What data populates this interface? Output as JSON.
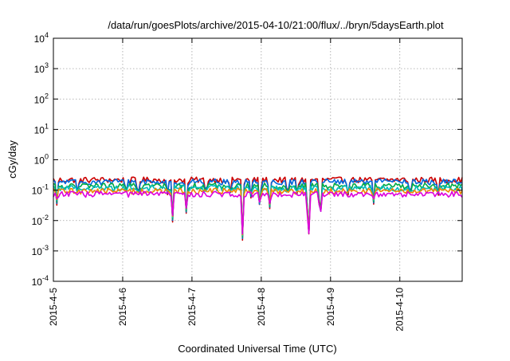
{
  "chart_data": {
    "type": "line",
    "title": "/data/run/goesPlots/archive/2015-04-10/21:00/flux/../bryn/5daysEarth.plot",
    "xlabel": "Coordinated Universal Time (UTC)",
    "ylabel": "cGy/day",
    "yscale": "log",
    "grid": true,
    "xlim": [
      0,
      5.9
    ],
    "ylim": [
      0.0001,
      10000
    ],
    "x_ticks": [
      {
        "label": "2015-4-5",
        "value": 0
      },
      {
        "label": "2015-4-6",
        "value": 1
      },
      {
        "label": "2015-4-7",
        "value": 2
      },
      {
        "label": "2015-4-8",
        "value": 3
      },
      {
        "label": "2015-4-9",
        "value": 4
      },
      {
        "label": "2015-4-10",
        "value": 5
      }
    ],
    "y_ticks": [
      {
        "base": "10",
        "exp": "4",
        "value": 10000
      },
      {
        "base": "10",
        "exp": "3",
        "value": 1000
      },
      {
        "base": "10",
        "exp": "2",
        "value": 100
      },
      {
        "base": "10",
        "exp": "1",
        "value": 10
      },
      {
        "base": "10",
        "exp": "0",
        "value": 1
      },
      {
        "base": "10",
        "exp": "-1",
        "value": 0.1
      },
      {
        "base": "10",
        "exp": "-2",
        "value": 0.01
      },
      {
        "base": "10",
        "exp": "-3",
        "value": 0.001
      },
      {
        "base": "10",
        "exp": "-4",
        "value": 0.0001
      }
    ],
    "dips": [
      {
        "x": 0.05,
        "v": 0.03
      },
      {
        "x": 0.35,
        "v": 0.06
      },
      {
        "x": 1.05,
        "v": 0.07
      },
      {
        "x": 1.22,
        "v": 0.05
      },
      {
        "x": 1.65,
        "v": 0.06
      },
      {
        "x": 1.72,
        "v": 0.008
      },
      {
        "x": 1.92,
        "v": 0.013
      },
      {
        "x": 2.2,
        "v": 0.06
      },
      {
        "x": 2.55,
        "v": 0.06
      },
      {
        "x": 2.73,
        "v": 0.0018
      },
      {
        "x": 2.85,
        "v": 0.05
      },
      {
        "x": 2.98,
        "v": 0.02
      },
      {
        "x": 3.12,
        "v": 0.02
      },
      {
        "x": 3.38,
        "v": 0.05
      },
      {
        "x": 3.52,
        "v": 0.06
      },
      {
        "x": 3.68,
        "v": 0.0006
      },
      {
        "x": 3.85,
        "v": 0.005
      },
      {
        "x": 4.25,
        "v": 0.06
      },
      {
        "x": 4.62,
        "v": 0.03
      },
      {
        "x": 5.15,
        "v": 0.05
      },
      {
        "x": 5.55,
        "v": 0.05
      }
    ],
    "series": [
      {
        "color": "#cc0000",
        "base": 0.22
      },
      {
        "color": "#0066dd",
        "base": 0.19
      },
      {
        "color": "#00aa44",
        "base": 0.14
      },
      {
        "color": "#00bbbb",
        "base": 0.12
      },
      {
        "color": "#ee8800",
        "base": 0.095
      },
      {
        "color": "#dd00dd",
        "base": 0.075
      }
    ]
  }
}
